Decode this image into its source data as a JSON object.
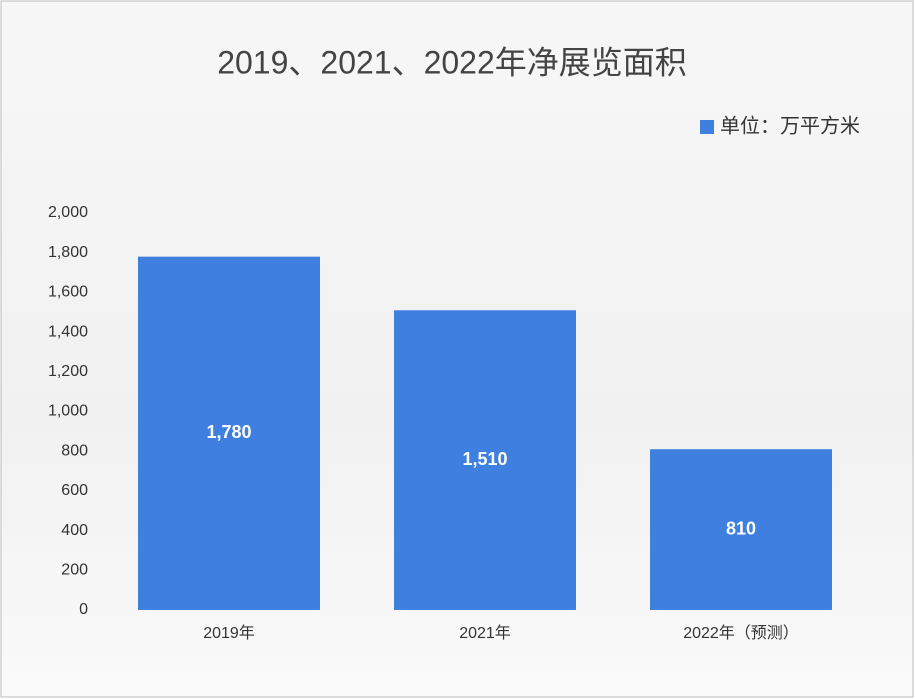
{
  "chart_data": {
    "type": "bar",
    "title": "2019、2021、2022年净展览面积",
    "categories": [
      "2019年",
      "2021年",
      "2022年（预测）"
    ],
    "series": [
      {
        "name": "单位：万平方米",
        "color": "#3f7fe0",
        "values": [
          1780,
          1510,
          810
        ],
        "value_labels": [
          "1,780",
          "1,510",
          "810"
        ]
      }
    ],
    "ylim": [
      0,
      2000
    ],
    "yticks": [
      0,
      200,
      400,
      600,
      800,
      {
        "value": 1000,
        "label": "1,000"
      },
      {
        "value": 1200,
        "label": "1,200"
      },
      {
        "value": 1400,
        "label": "1,400"
      },
      {
        "value": 1600,
        "label": "1,600"
      },
      {
        "value": 1800,
        "label": "1,800"
      },
      {
        "value": 2000,
        "label": "2,000"
      }
    ],
    "grid": false,
    "legend": "top-right"
  }
}
